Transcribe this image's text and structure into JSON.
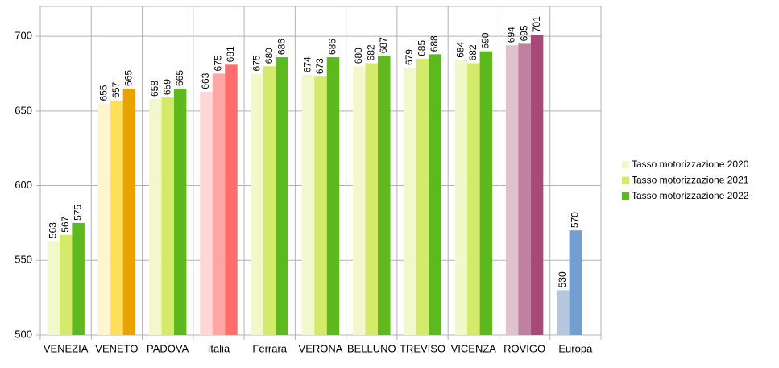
{
  "chart_data": {
    "type": "bar",
    "categories": [
      "VENEZIA",
      "VENETO",
      "PADOVA",
      "Italia",
      "Ferrara",
      "VERONA",
      "BELLUNO",
      "TREVISO",
      "VICENZA",
      "ROVIGO",
      "Europa"
    ],
    "series": [
      {
        "name": "Tasso motorizzazione 2020",
        "color": "#f3f8cc",
        "values": [
          563,
          655,
          658,
          663,
          675,
          674,
          680,
          679,
          684,
          694,
          530
        ],
        "point_colors": [
          "#f3f8cc",
          "#fff5ce",
          "#f3f8cc",
          "#ffd7d7",
          "#f3f8cc",
          "#f3f8cc",
          "#f3f8cc",
          "#f3f8cc",
          "#f3f8cc",
          "#e0c2cd",
          "#b4c7dc"
        ]
      },
      {
        "name": "Tasso motorizzazione 2021",
        "color": "#d4ea6b",
        "values": [
          567,
          657,
          659,
          675,
          680,
          673,
          682,
          685,
          682,
          695,
          570
        ],
        "point_colors": [
          "#d4ea6b",
          "#ffde59",
          "#d4ea6b",
          "#ffa6a6",
          "#d4ea6b",
          "#d4ea6b",
          "#d4ea6b",
          "#d4ea6b",
          "#d4ea6b",
          "#c081a0",
          "#729fcf"
        ]
      },
      {
        "name": "Tasso motorizzazione 2022",
        "color": "#5eb91e",
        "values": [
          575,
          665,
          665,
          681,
          686,
          686,
          687,
          688,
          690,
          701,
          null
        ],
        "point_colors": [
          "#5eb91e",
          "#e8a202",
          "#5eb91e",
          "#ff6d6d",
          "#5eb91e",
          "#5eb91e",
          "#5eb91e",
          "#5eb91e",
          "#5eb91e",
          "#a64a7a",
          null
        ]
      }
    ],
    "ylim": [
      500,
      720
    ],
    "yticks": [
      500,
      550,
      600,
      650,
      700
    ],
    "grid": true,
    "legend": "right"
  }
}
